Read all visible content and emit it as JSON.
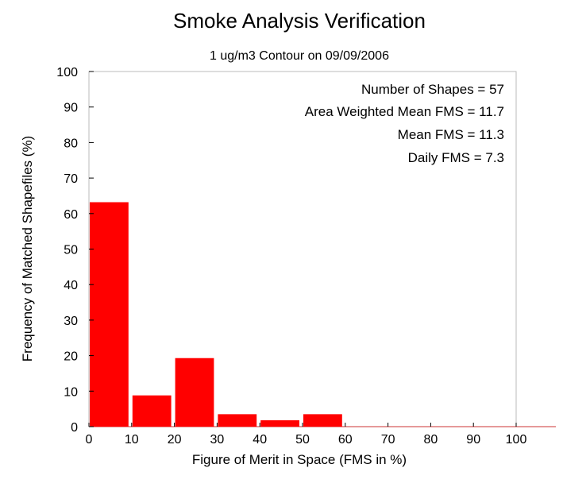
{
  "chart_data": {
    "type": "bar",
    "title": "Smoke Analysis Verification",
    "subtitle": "1 ug/m3 Contour on 09/09/2006",
    "xlabel": "Figure of Merit in Space (FMS in %)",
    "ylabel": "Frequency of Matched Shapefiles (%)",
    "xlim": [
      0,
      100
    ],
    "ylim": [
      0,
      100
    ],
    "x_ticks": [
      "0",
      "10",
      "20",
      "30",
      "40",
      "50",
      "60",
      "70",
      "80",
      "90",
      "100"
    ],
    "y_ticks": [
      "0",
      "10",
      "20",
      "30",
      "40",
      "50",
      "60",
      "70",
      "80",
      "90",
      "100"
    ],
    "bins": [
      {
        "start": 0,
        "end": 10,
        "value": 63.2
      },
      {
        "start": 10,
        "end": 20,
        "value": 8.8
      },
      {
        "start": 20,
        "end": 30,
        "value": 19.3
      },
      {
        "start": 30,
        "end": 40,
        "value": 3.5
      },
      {
        "start": 40,
        "end": 50,
        "value": 1.8
      },
      {
        "start": 50,
        "end": 60,
        "value": 3.5
      },
      {
        "start": 60,
        "end": 70,
        "value": 0
      },
      {
        "start": 70,
        "end": 80,
        "value": 0
      },
      {
        "start": 80,
        "end": 90,
        "value": 0
      },
      {
        "start": 90,
        "end": 100,
        "value": 0
      }
    ],
    "bar_color": "#ff0000",
    "grid": false,
    "stats": [
      "Number of Shapes = 57",
      "Area Weighted Mean FMS = 11.7",
      "Mean FMS = 11.3",
      "Daily FMS = 7.3"
    ]
  }
}
